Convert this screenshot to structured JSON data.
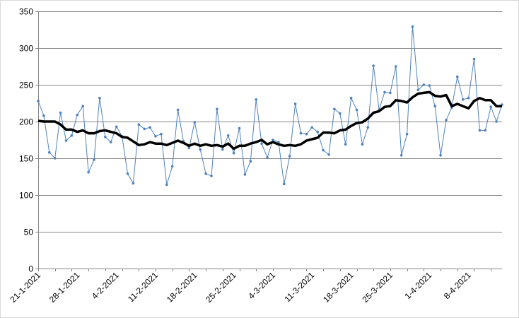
{
  "chart_data": {
    "type": "line",
    "x_start": "2021-01-21",
    "y_ticks": [
      0,
      50,
      100,
      150,
      200,
      250,
      300,
      350
    ],
    "x_tick_labels": [
      "21-1-2021",
      "28-1-2021",
      "4-2-2021",
      "11-2-2021",
      "18-2-2021",
      "25-2-2021",
      "4-3-2021",
      "11-3-2021",
      "18-3-2021",
      "25-3-2021",
      "1-4-2021",
      "8-4-2021"
    ],
    "ylim": [
      0,
      350
    ],
    "grid": true,
    "legend": "none",
    "colors": {
      "raw": "#4f81bd",
      "moving_average": "#000000"
    },
    "series": [
      {
        "style": "thin-line-with-markers",
        "values": [
          228,
          208,
          158,
          150,
          212,
          174,
          181,
          209,
          221,
          131,
          148,
          232,
          179,
          172,
          193,
          180,
          129,
          116,
          196,
          190,
          192,
          180,
          183,
          114,
          139,
          216,
          173,
          164,
          199,
          162,
          129,
          126,
          217,
          162,
          181,
          157,
          191,
          128,
          146,
          230,
          170,
          151,
          175,
          172,
          115,
          153,
          224,
          184,
          183,
          192,
          186,
          161,
          155,
          217,
          211,
          169,
          232,
          216,
          169,
          192,
          276,
          216,
          240,
          239,
          275,
          154,
          183,
          329,
          243,
          250,
          249,
          221,
          154,
          202,
          219,
          261,
          230,
          232,
          285,
          188,
          188,
          220,
          200,
          223
        ]
      },
      {
        "style": "thick-line",
        "values": [
          201,
          200,
          200,
          200,
          196,
          189,
          189,
          186,
          188,
          184,
          184,
          187,
          188,
          186,
          184,
          179,
          178,
          173,
          168,
          169,
          172,
          170,
          170,
          168,
          171,
          174,
          171,
          167,
          170,
          167,
          169,
          167,
          168,
          166,
          170,
          163,
          167,
          167,
          170,
          172,
          175,
          169,
          172,
          169,
          167,
          168,
          167,
          169,
          174,
          176,
          178,
          185,
          185,
          184,
          188,
          189,
          194,
          198,
          199,
          204,
          212,
          214,
          220,
          221,
          229,
          228,
          226,
          233,
          238,
          239,
          240,
          235,
          234,
          236,
          221,
          224,
          221,
          218,
          228,
          232,
          229,
          229,
          221,
          221
        ]
      }
    ]
  }
}
